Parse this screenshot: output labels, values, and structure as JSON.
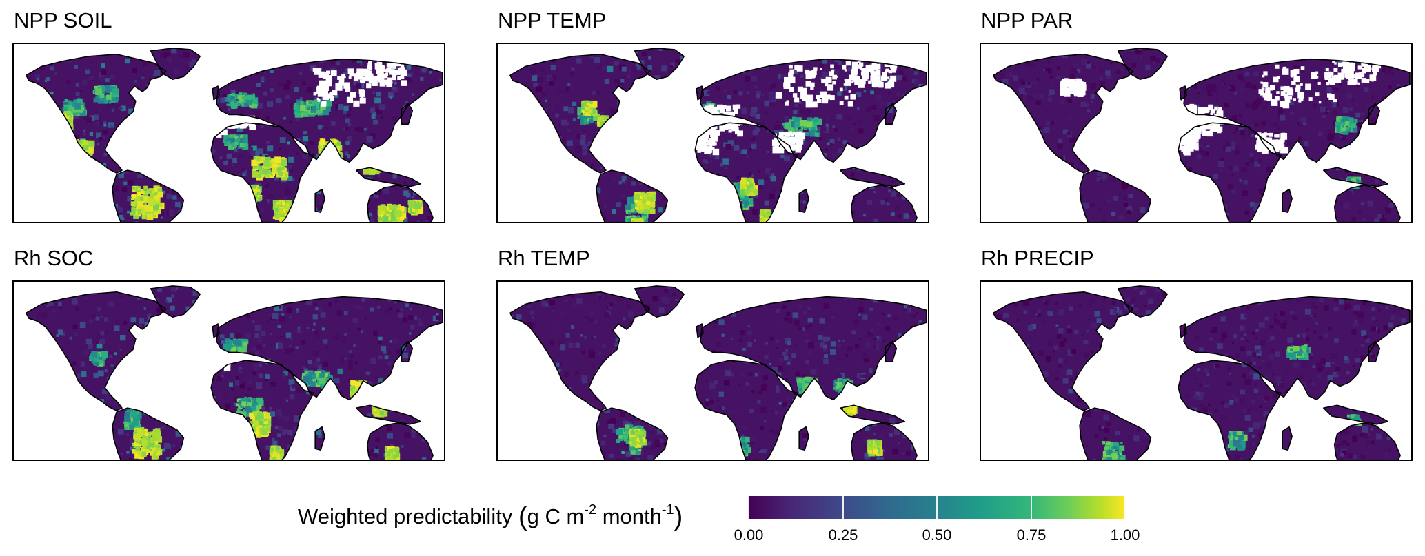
{
  "panels": [
    {
      "title": "NPP SOIL",
      "scheme": "npp_soil"
    },
    {
      "title": "NPP TEMP",
      "scheme": "npp_temp"
    },
    {
      "title": "NPP PAR",
      "scheme": "npp_par"
    },
    {
      "title": "Rh SOC",
      "scheme": "rh_soc"
    },
    {
      "title": "Rh TEMP",
      "scheme": "rh_temp"
    },
    {
      "title": "Rh PRECIP",
      "scheme": "rh_precip"
    }
  ],
  "legend": {
    "title_text": "Weighted predictability",
    "unit_open": "(",
    "unit_g": "g C m",
    "unit_exp1": "-2",
    "unit_month": " month",
    "unit_exp2": "-1",
    "unit_close": ")",
    "ticks": [
      "0.00",
      "0.25",
      "0.50",
      "0.75",
      "1.00"
    ],
    "tick_values": [
      0,
      0.25,
      0.5,
      0.75,
      1.0
    ],
    "min": 0,
    "max": 1
  },
  "colors": {
    "viridis": [
      "#440154",
      "#482878",
      "#3e4a89",
      "#31688e",
      "#26828e",
      "#1f9e89",
      "#35b779",
      "#6ece58",
      "#b5de2b",
      "#fde725"
    ],
    "outline": "#000000",
    "no_data": "#ffffff"
  }
}
